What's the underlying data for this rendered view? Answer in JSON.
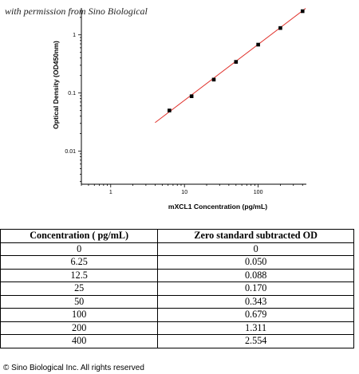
{
  "watermark": "with permission from Sino Biological",
  "chart_data": {
    "type": "scatter",
    "xlabel": "mXCL1 Concentration (pg/mL)",
    "ylabel": "Optical Density (OD450nm)",
    "xscale": "log",
    "yscale": "log",
    "xlim": [
      0.4,
      450
    ],
    "ylim": [
      0.0027,
      2.9
    ],
    "xticks": [
      {
        "value": 1,
        "label": "1"
      },
      {
        "value": 10,
        "label": "10"
      },
      {
        "value": 100,
        "label": "100"
      }
    ],
    "yticks": [
      {
        "value": 0.01,
        "label": "0.01"
      },
      {
        "value": 0.1,
        "label": "0.1"
      },
      {
        "value": 1,
        "label": "1"
      }
    ],
    "grid": false,
    "series": [
      {
        "x": [
          6.25,
          12.5,
          25,
          50,
          100,
          200,
          400
        ],
        "y": [
          0.05,
          0.088,
          0.17,
          0.343,
          0.679,
          1.311,
          2.554
        ],
        "color": "#000000"
      }
    ],
    "fit_line": {
      "x": [
        4,
        440
      ],
      "y": [
        0.031,
        2.85
      ],
      "color": "#e0302a"
    }
  },
  "table": {
    "headers": [
      "Concentration ( pg/mL)",
      "Zero standard subtracted OD"
    ],
    "rows": [
      [
        "0",
        "0"
      ],
      [
        "6.25",
        "0.050"
      ],
      [
        "12.5",
        "0.088"
      ],
      [
        "25",
        "0.170"
      ],
      [
        "50",
        "0.343"
      ],
      [
        "100",
        "0.679"
      ],
      [
        "200",
        "1.311"
      ],
      [
        "400",
        "2.554"
      ]
    ]
  },
  "copyright": "© Sino Biological Inc. All rights reserved"
}
